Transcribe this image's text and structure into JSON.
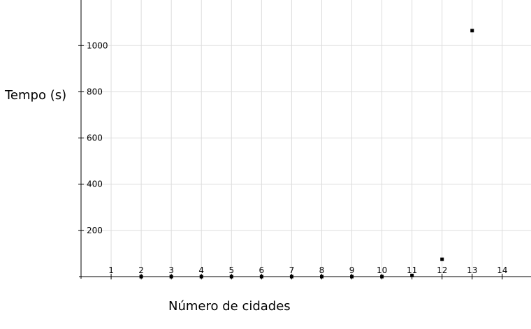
{
  "chart_data": {
    "type": "scatter",
    "title": "",
    "xlabel": "Número de cidades",
    "ylabel": "Tempo (s)",
    "x_ticks": [
      1,
      2,
      3,
      4,
      5,
      6,
      7,
      8,
      9,
      10,
      11,
      12,
      13,
      14
    ],
    "y_ticks": [
      200,
      400,
      600,
      800,
      1000
    ],
    "xlim": [
      0,
      14.95
    ],
    "ylim": [
      0,
      1200
    ],
    "grid": true,
    "legend": "none",
    "series": [
      {
        "x": [
          2,
          3,
          4,
          5,
          6,
          7,
          8,
          9,
          10,
          11,
          12,
          13
        ],
        "y": [
          0,
          0,
          0,
          0,
          0,
          0,
          0,
          0,
          0,
          5,
          75,
          1065
        ]
      }
    ]
  },
  "colors": {
    "grid": "#dddddd",
    "axis": "#000000",
    "point": "#000000"
  }
}
